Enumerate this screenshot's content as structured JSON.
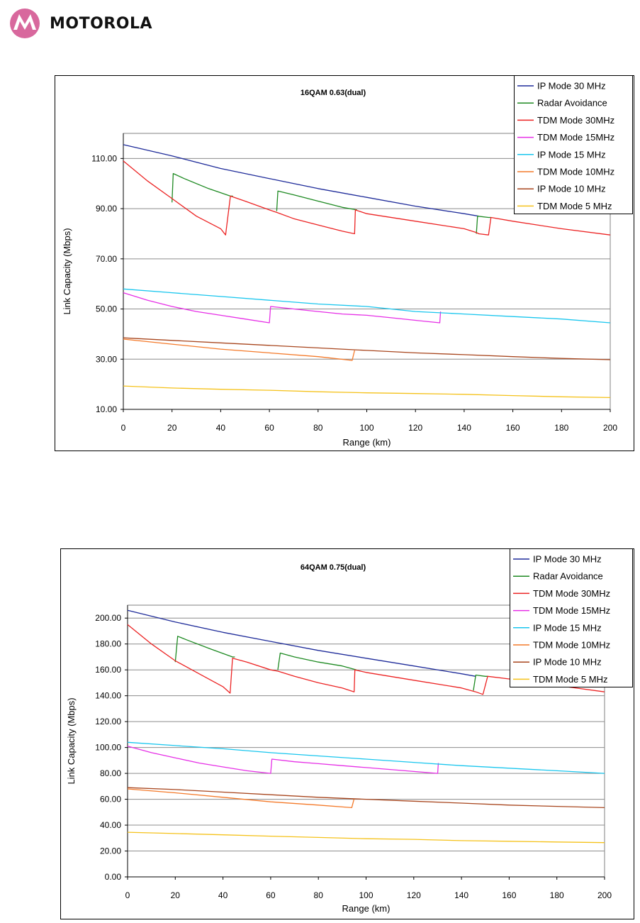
{
  "header": {
    "brand_name": "MOTOROLA",
    "logo_icon": "motorola-batwing-logo-icon",
    "logo_color": "#d8689d"
  },
  "colors": {
    "IP Mode 30 MHz": "#1f2c9a",
    "Radar Avoidance": "#1e8a22",
    "TDM Mode 30MHz": "#ec2323",
    "TDM Mode 15MHz": "#e62fe6",
    "IP Mode 15 MHz": "#19c6ee",
    "TDM Mode 10MHz": "#f47a2a",
    "IP Mode 10 MHz": "#a8461e",
    "TDM Mode 5 MHz": "#f5c21b"
  },
  "chart_data": [
    {
      "type": "line",
      "title": "16QAM 0.63(dual)",
      "xlabel": "Range (km)",
      "ylabel": "Link Capacity (Mbps)",
      "xlim": [
        0,
        200
      ],
      "ylim": [
        10,
        120
      ],
      "xticks": [
        "0",
        "20",
        "40",
        "60",
        "80",
        "100",
        "120",
        "140",
        "160",
        "180",
        "200"
      ],
      "yticks": [
        "10.00",
        "30.00",
        "50.00",
        "70.00",
        "90.00",
        "110.00"
      ],
      "grid": "horizontal",
      "legend_position": "top-right",
      "series": [
        {
          "name": "IP Mode 30 MHz",
          "points": [
            [
              0,
              115.5
            ],
            [
              20,
              111
            ],
            [
              40,
              106
            ],
            [
              60,
              102
            ],
            [
              80,
              98
            ],
            [
              100,
              94.5
            ],
            [
              120,
              91
            ],
            [
              140,
              88
            ],
            [
              146,
              87
            ]
          ]
        },
        {
          "name": "Radar Avoidance",
          "points": [
            [
              20,
              92.5
            ],
            [
              20.5,
              104
            ],
            [
              25,
              102
            ],
            [
              35,
              98
            ],
            [
              44,
              95
            ],
            [
              44,
              95
            ],
            [
              45,
              95
            ]
          ],
          "extra": [
            [
              [
                63,
                89
              ],
              [
                63.5,
                97
              ],
              [
                70,
                95.5
              ],
              [
                80,
                93
              ],
              [
                90,
                90.5
              ],
              [
                96,
                89.5
              ]
            ],
            [
              [
                145,
                80
              ],
              [
                145.5,
                87
              ],
              [
                150,
                86.5
              ],
              [
                151,
                86.5
              ]
            ]
          ]
        },
        {
          "name": "TDM Mode 30MHz",
          "points": [
            [
              0,
              109
            ],
            [
              10,
              101
            ],
            [
              20,
              94
            ],
            [
              30,
              87
            ],
            [
              40,
              82
            ],
            [
              42,
              79.5
            ],
            [
              44,
              95
            ],
            [
              50,
              93
            ],
            [
              60,
              89.5
            ],
            [
              63,
              88.5
            ],
            [
              70,
              86
            ],
            [
              80,
              83.5
            ],
            [
              90,
              81
            ],
            [
              95,
              80
            ],
            [
              95.3,
              89.5
            ],
            [
              100,
              88
            ],
            [
              120,
              85
            ],
            [
              140,
              82
            ],
            [
              145,
              80.5
            ],
            [
              146,
              80
            ],
            [
              150,
              79.5
            ],
            [
              151,
              86.5
            ],
            [
              160,
              85
            ],
            [
              180,
              82
            ],
            [
              200,
              79.5
            ]
          ]
        },
        {
          "name": "TDM Mode 15MHz",
          "points": [
            [
              0,
              56.5
            ],
            [
              10,
              53.5
            ],
            [
              20,
              51
            ],
            [
              30,
              49
            ],
            [
              40,
              47.5
            ],
            [
              50,
              46
            ],
            [
              60,
              44.5
            ],
            [
              60.5,
              51
            ],
            [
              70,
              50
            ],
            [
              80,
              49
            ],
            [
              90,
              48
            ],
            [
              100,
              47.5
            ],
            [
              110,
              46.5
            ],
            [
              120,
              45.5
            ],
            [
              130,
              44.5
            ],
            [
              130.3,
              49
            ]
          ]
        },
        {
          "name": "IP Mode 15 MHz",
          "points": [
            [
              0,
              58
            ],
            [
              20,
              56.5
            ],
            [
              40,
              55
            ],
            [
              60,
              53.5
            ],
            [
              80,
              52
            ],
            [
              100,
              51
            ],
            [
              120,
              49
            ],
            [
              140,
              48
            ],
            [
              160,
              47
            ],
            [
              180,
              46
            ],
            [
              200,
              44.5
            ]
          ]
        },
        {
          "name": "TDM Mode 10MHz",
          "points": [
            [
              0,
              38
            ],
            [
              20,
              36
            ],
            [
              40,
              34
            ],
            [
              60,
              32.5
            ],
            [
              80,
              31
            ],
            [
              94,
              29.5
            ],
            [
              95,
              33.5
            ]
          ]
        },
        {
          "name": "IP Mode 10 MHz",
          "points": [
            [
              0,
              38.5
            ],
            [
              20,
              37.5
            ],
            [
              40,
              36.5
            ],
            [
              60,
              35.5
            ],
            [
              80,
              34.5
            ],
            [
              100,
              33.5
            ],
            [
              120,
              32.5
            ],
            [
              140,
              31.8
            ],
            [
              160,
              31
            ],
            [
              180,
              30.3
            ],
            [
              200,
              29.8
            ]
          ]
        },
        {
          "name": "TDM Mode 5 MHz",
          "points": [
            [
              0,
              19.3
            ],
            [
              20,
              18.5
            ],
            [
              40,
              18
            ],
            [
              60,
              17.6
            ],
            [
              80,
              17
            ],
            [
              100,
              16.6
            ],
            [
              120,
              16.3
            ],
            [
              140,
              16
            ],
            [
              160,
              15.5
            ],
            [
              180,
              15
            ],
            [
              200,
              14.7
            ]
          ]
        }
      ]
    },
    {
      "type": "line",
      "title": "64QAM 0.75(dual)",
      "xlabel": "Range (km)",
      "ylabel": "Link Capacity (Mbps)",
      "xlim": [
        0,
        200
      ],
      "ylim": [
        0,
        210
      ],
      "xticks": [
        "0",
        "20",
        "40",
        "60",
        "80",
        "100",
        "120",
        "140",
        "160",
        "180",
        "200"
      ],
      "yticks": [
        "0.00",
        "20.00",
        "40.00",
        "60.00",
        "80.00",
        "100.00",
        "120.00",
        "140.00",
        "160.00",
        "180.00",
        "200.00"
      ],
      "grid": "horizontal",
      "legend_position": "top-right",
      "series": [
        {
          "name": "IP Mode 30 MHz",
          "points": [
            [
              0,
              206
            ],
            [
              20,
              197
            ],
            [
              40,
              189
            ],
            [
              60,
              182
            ],
            [
              80,
              175
            ],
            [
              100,
              169
            ],
            [
              120,
              163
            ],
            [
              140,
              157
            ],
            [
              146,
              155
            ]
          ]
        },
        {
          "name": "Radar Avoidance",
          "points": [
            [
              20,
              166
            ],
            [
              21,
              186
            ],
            [
              25,
              183
            ],
            [
              35,
              176
            ],
            [
              44,
              170
            ],
            [
              45,
              170
            ]
          ],
          "extra": [
            [
              [
                63,
                160
              ],
              [
                64,
                173
              ],
              [
                70,
                170
              ],
              [
                80,
                166
              ],
              [
                90,
                163
              ],
              [
                96,
                160
              ]
            ],
            [
              [
                145,
                144
              ],
              [
                146,
                156
              ],
              [
                150,
                155
              ],
              [
                151,
                155
              ]
            ]
          ]
        },
        {
          "name": "TDM Mode 30MHz",
          "points": [
            [
              0,
              195
            ],
            [
              10,
              180
            ],
            [
              20,
              167
            ],
            [
              30,
              157
            ],
            [
              40,
              147
            ],
            [
              43,
              142
            ],
            [
              44,
              169
            ],
            [
              50,
              166
            ],
            [
              60,
              160
            ],
            [
              63,
              159
            ],
            [
              70,
              155
            ],
            [
              80,
              150
            ],
            [
              90,
              146
            ],
            [
              95,
              143
            ],
            [
              95.3,
              160
            ],
            [
              100,
              158
            ],
            [
              120,
              152
            ],
            [
              140,
              146
            ],
            [
              146,
              143
            ],
            [
              149,
              141
            ],
            [
              151,
              155
            ],
            [
              160,
              153
            ],
            [
              180,
              148
            ],
            [
              200,
              143
            ]
          ]
        },
        {
          "name": "TDM Mode 15MHz",
          "points": [
            [
              0,
              101
            ],
            [
              10,
              96
            ],
            [
              20,
              92
            ],
            [
              30,
              88
            ],
            [
              40,
              85
            ],
            [
              50,
              82
            ],
            [
              60,
              80
            ],
            [
              60.5,
              91
            ],
            [
              70,
              89
            ],
            [
              80,
              87.5
            ],
            [
              90,
              86
            ],
            [
              100,
              84.5
            ],
            [
              110,
              83
            ],
            [
              120,
              81.5
            ],
            [
              130,
              80
            ],
            [
              130.3,
              88
            ]
          ]
        },
        {
          "name": "IP Mode 15 MHz",
          "points": [
            [
              0,
              104
            ],
            [
              20,
              101.5
            ],
            [
              40,
              99
            ],
            [
              60,
              96
            ],
            [
              80,
              93.5
            ],
            [
              100,
              91
            ],
            [
              120,
              88.5
            ],
            [
              140,
              86
            ],
            [
              160,
              84
            ],
            [
              180,
              82
            ],
            [
              200,
              80
            ]
          ]
        },
        {
          "name": "TDM Mode 10MHz",
          "points": [
            [
              0,
              68
            ],
            [
              20,
              65
            ],
            [
              40,
              61.5
            ],
            [
              60,
              58
            ],
            [
              80,
              55.5
            ],
            [
              94,
              53.5
            ],
            [
              95,
              60.5
            ]
          ]
        },
        {
          "name": "IP Mode 10 MHz",
          "points": [
            [
              0,
              69
            ],
            [
              20,
              67.5
            ],
            [
              40,
              65.5
            ],
            [
              60,
              63.5
            ],
            [
              80,
              61.5
            ],
            [
              100,
              60
            ],
            [
              120,
              58.5
            ],
            [
              140,
              57
            ],
            [
              160,
              55.5
            ],
            [
              180,
              54.5
            ],
            [
              200,
              53.5
            ]
          ]
        },
        {
          "name": "TDM Mode 5 MHz",
          "points": [
            [
              0,
              34.5
            ],
            [
              20,
              33.5
            ],
            [
              40,
              32.5
            ],
            [
              60,
              31.5
            ],
            [
              80,
              30.5
            ],
            [
              100,
              29.5
            ],
            [
              120,
              29
            ],
            [
              140,
              28
            ],
            [
              160,
              27.5
            ],
            [
              180,
              27
            ],
            [
              200,
              26.5
            ]
          ]
        }
      ]
    }
  ]
}
